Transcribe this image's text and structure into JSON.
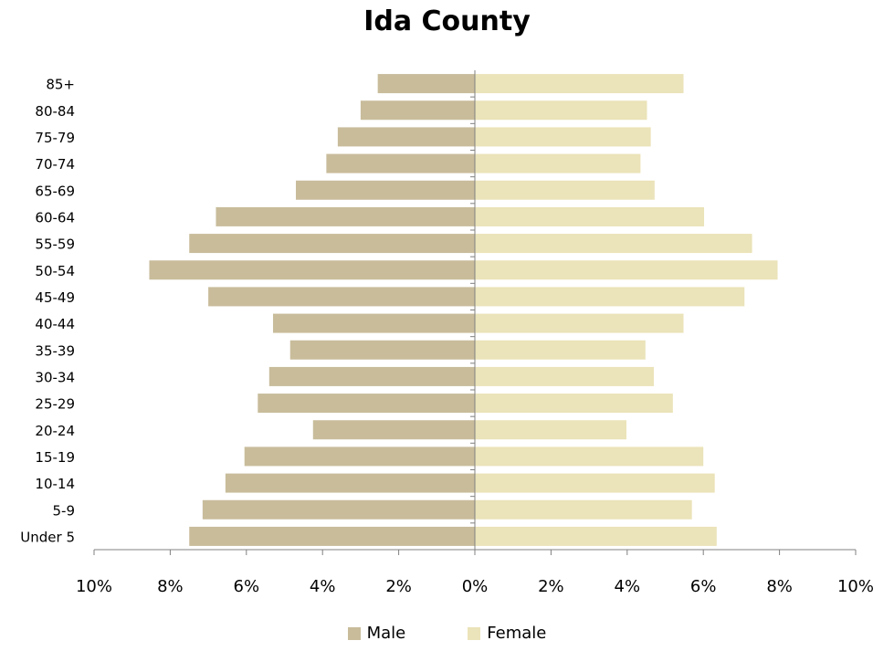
{
  "chart_data": {
    "type": "bar",
    "orientation": "horizontal",
    "title": "Ida County",
    "xlabel": "",
    "ylabel": "",
    "xlim": [
      -10,
      10
    ],
    "x_ticks": [
      "10%",
      "8%",
      "6%",
      "4%",
      "2%",
      "0%",
      "2%",
      "4%",
      "6%",
      "8%",
      "10%"
    ],
    "grid": false,
    "legend_position": "bottom",
    "categories": [
      "Under 5",
      "5-9",
      "10-14",
      "15-19",
      "20-24",
      "25-29",
      "30-34",
      "35-39",
      "40-44",
      "45-49",
      "50-54",
      "55-59",
      "60-64",
      "65-69",
      "70-74",
      "75-79",
      "80-84",
      "85+"
    ],
    "series": [
      {
        "name": "Male",
        "color": "#c8bc9b",
        "values": [
          7.5,
          7.15,
          6.55,
          6.05,
          4.25,
          5.7,
          5.4,
          4.85,
          5.3,
          7.0,
          8.55,
          7.5,
          6.8,
          4.7,
          3.9,
          3.6,
          3.0,
          2.55
        ]
      },
      {
        "name": "Female",
        "color": "#ebe3b9",
        "values": [
          6.35,
          5.7,
          6.3,
          6.0,
          3.98,
          5.2,
          4.7,
          4.48,
          5.48,
          7.08,
          7.95,
          7.28,
          6.02,
          4.72,
          4.35,
          4.62,
          4.52,
          5.48
        ]
      }
    ]
  }
}
